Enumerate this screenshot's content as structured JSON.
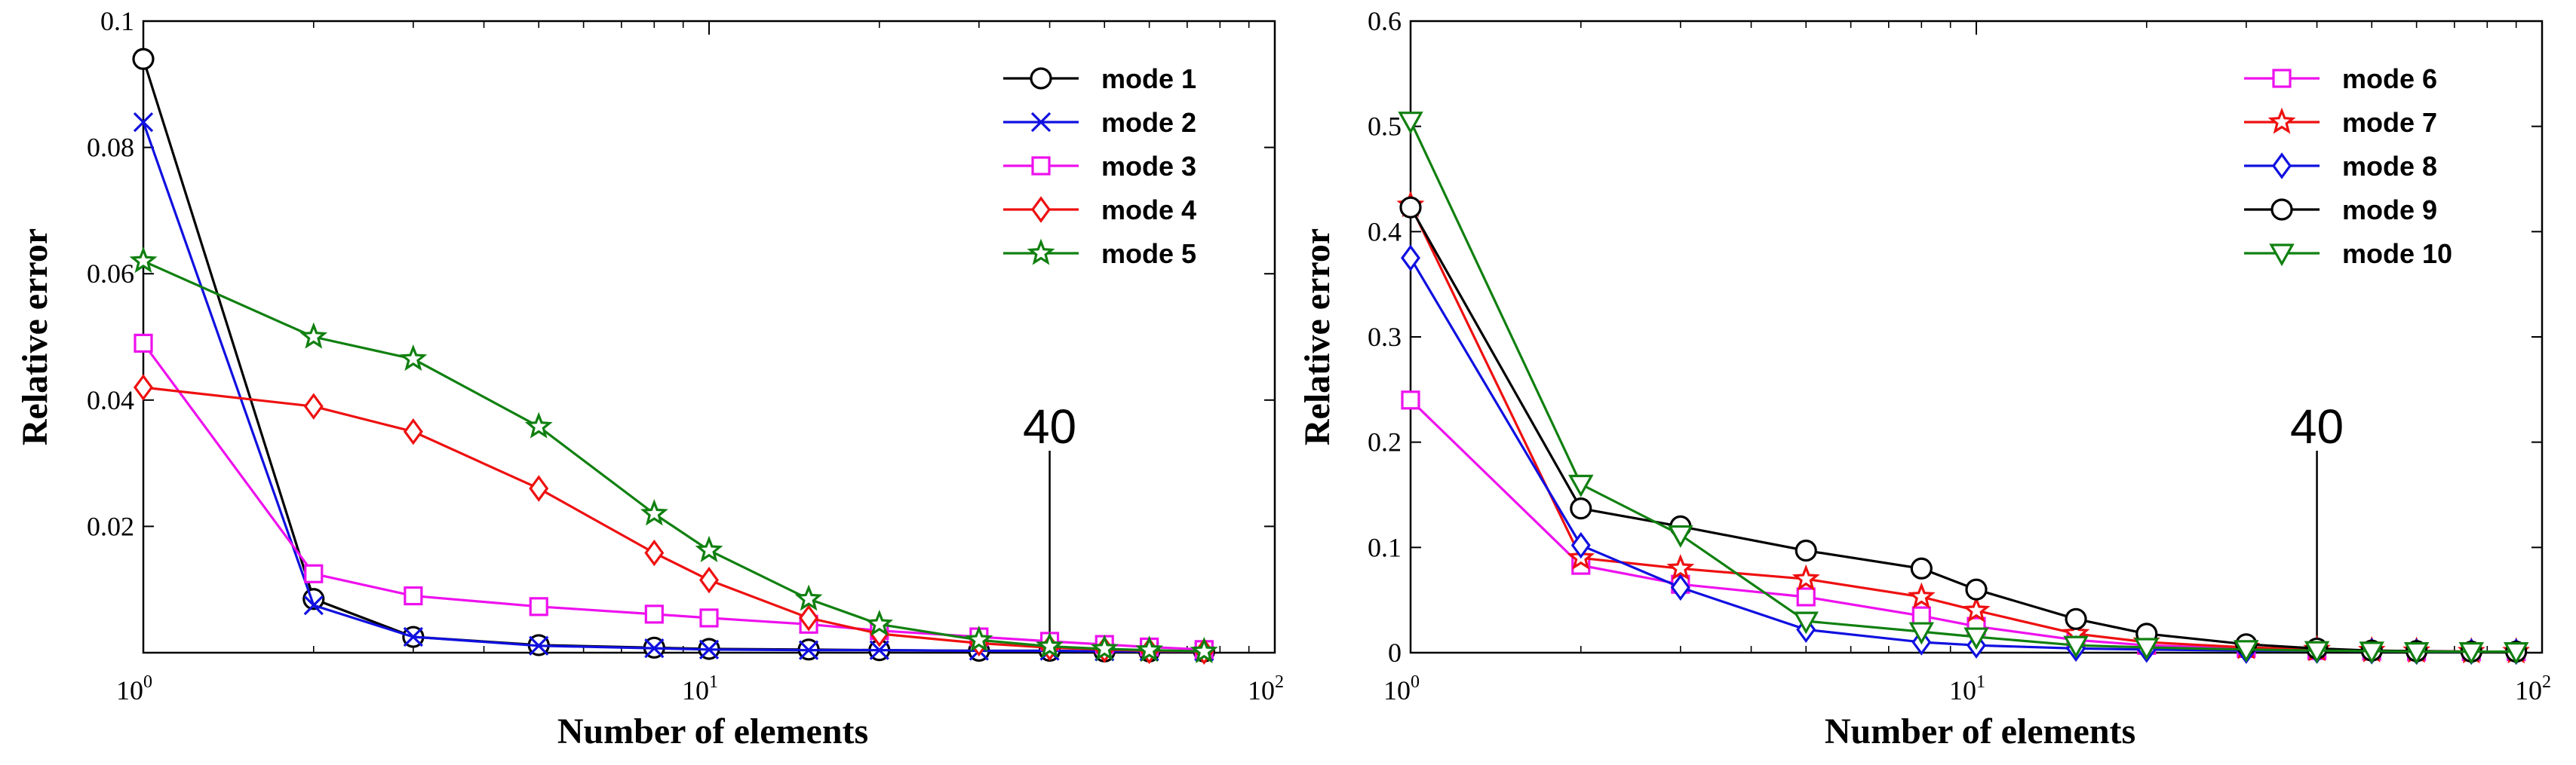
{
  "chart_data": [
    {
      "type": "line",
      "xscale": "log",
      "xlim": [
        1,
        100
      ],
      "ylim": [
        0,
        0.1
      ],
      "xlabel": "Number of elements",
      "ylabel": "Relative error",
      "x_ticks": [
        {
          "base": "10",
          "exp": "0"
        },
        {
          "base": "10",
          "exp": "1"
        },
        {
          "base": "10",
          "exp": "2"
        }
      ],
      "y_ticks": [
        "0.02",
        "0.04",
        "0.06",
        "0.08",
        "0.1"
      ],
      "y_tick_values": [
        0.02,
        0.04,
        0.06,
        0.08,
        0.1
      ],
      "legend_position": "top-right",
      "annotation": {
        "text": "40",
        "x": 40
      },
      "x": [
        1,
        2,
        3,
        5,
        8,
        10,
        15,
        20,
        30,
        40,
        50,
        60,
        75
      ],
      "series": [
        {
          "name": "mode 1",
          "color": "#000000",
          "marker": "circle",
          "values": [
            0.094,
            0.0085,
            0.0025,
            0.0012,
            0.0008,
            0.0006,
            0.0005,
            0.0004,
            0.0003,
            0.0003,
            0.0002,
            0.0002,
            0.0002
          ]
        },
        {
          "name": "mode 2",
          "color": "#1010e0",
          "marker": "x",
          "values": [
            0.084,
            0.0075,
            0.0025,
            0.0011,
            0.0007,
            0.0005,
            0.0004,
            0.0004,
            0.0003,
            0.0003,
            0.0002,
            0.0002,
            0.0002
          ]
        },
        {
          "name": "mode 3",
          "color": "#ee10ee",
          "marker": "square",
          "values": [
            0.049,
            0.0125,
            0.009,
            0.0073,
            0.0061,
            0.0055,
            0.0045,
            0.0035,
            0.0025,
            0.0018,
            0.0013,
            0.0009,
            0.0005
          ]
        },
        {
          "name": "mode 4",
          "color": "#ee1010",
          "marker": "diamond",
          "values": [
            0.042,
            0.039,
            0.035,
            0.026,
            0.0158,
            0.0115,
            0.0055,
            0.003,
            0.0015,
            0.0008,
            0.0005,
            0.0003,
            0.0002
          ]
        },
        {
          "name": "mode 5",
          "color": "#108010",
          "marker": "star",
          "values": [
            0.062,
            0.05,
            0.0465,
            0.0358,
            0.022,
            0.0162,
            0.0085,
            0.0045,
            0.002,
            0.001,
            0.0006,
            0.0004,
            0.0002
          ]
        }
      ]
    },
    {
      "type": "line",
      "xscale": "log",
      "xlim": [
        1,
        100
      ],
      "ylim": [
        0,
        0.6
      ],
      "xlabel": "Number of elements",
      "ylabel": "Relative error",
      "x_ticks": [
        {
          "base": "10",
          "exp": "0"
        },
        {
          "base": "10",
          "exp": "1"
        },
        {
          "base": "10",
          "exp": "2"
        }
      ],
      "y_ticks": [
        "0",
        "0.1",
        "0.2",
        "0.3",
        "0.4",
        "0.5",
        "0.6"
      ],
      "y_tick_values": [
        0,
        0.1,
        0.2,
        0.3,
        0.4,
        0.5,
        0.6
      ],
      "legend_position": "top-right",
      "annotation": {
        "text": "40",
        "x": 40
      },
      "x": [
        1,
        2,
        3,
        5,
        8,
        10,
        15,
        20,
        30,
        40,
        50,
        60,
        75,
        90
      ],
      "series": [
        {
          "name": "mode 6",
          "color": "#ee10ee",
          "marker": "square",
          "values": [
            0.24,
            0.083,
            0.065,
            0.053,
            0.035,
            0.025,
            0.012,
            0.007,
            0.004,
            0.002,
            0.0015,
            0.001,
            0.001,
            0.001
          ]
        },
        {
          "name": "mode 7",
          "color": "#ee1010",
          "marker": "star",
          "values": [
            0.425,
            0.09,
            0.08,
            0.07,
            0.053,
            0.04,
            0.018,
            0.01,
            0.005,
            0.003,
            0.002,
            0.0015,
            0.001,
            0.001
          ]
        },
        {
          "name": "mode 8",
          "color": "#1010e0",
          "marker": "diamond",
          "values": [
            0.375,
            0.102,
            0.062,
            0.022,
            0.01,
            0.007,
            0.004,
            0.003,
            0.002,
            0.002,
            0.0015,
            0.001,
            0.001,
            0.001
          ]
        },
        {
          "name": "mode 9",
          "color": "#000000",
          "marker": "circle",
          "values": [
            0.423,
            0.137,
            0.12,
            0.097,
            0.08,
            0.06,
            0.032,
            0.018,
            0.008,
            0.004,
            0.002,
            0.0015,
            0.001,
            0.001
          ]
        },
        {
          "name": "mode 10",
          "color": "#108010",
          "marker": "triangle-down",
          "values": [
            0.505,
            0.16,
            0.112,
            0.03,
            0.02,
            0.015,
            0.007,
            0.005,
            0.003,
            0.002,
            0.0015,
            0.001,
            0.001,
            0.001
          ]
        }
      ]
    }
  ]
}
